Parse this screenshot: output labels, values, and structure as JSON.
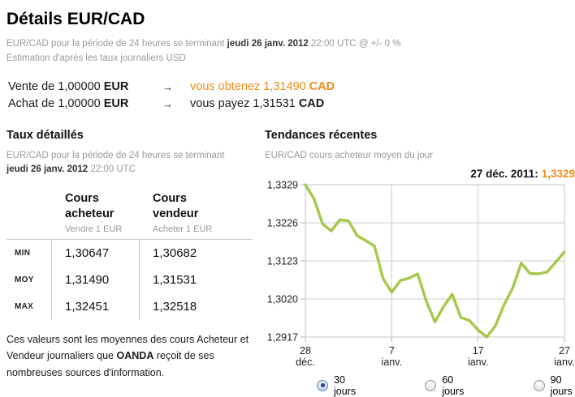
{
  "page": {
    "title": "Détails EUR/CAD",
    "subtitle_prefix": "EUR/CAD pour la période de 24 heures se terminant ",
    "subtitle_date": "jeudi 26 janv. 2012",
    "subtitle_suffix": " 22:00 UTC @ +/- 0 %",
    "subtitle_line2": "Estimation d'après les taux journaliers USD"
  },
  "rates": {
    "sell_label": "Vente de 1,00000 ",
    "sell_currency": "EUR",
    "arrow": "→",
    "sell_result": "vous obtenez 1,31490 ",
    "sell_result_currency": "CAD",
    "buy_label": "Achat de 1,00000 ",
    "buy_currency": "EUR",
    "buy_result": "vous payez 1,31531 ",
    "buy_result_currency": "CAD"
  },
  "detailed_rates": {
    "heading": "Taux détaillés",
    "subtitle_line1": "EUR/CAD pour la période de 24 heures se terminant",
    "subtitle_date": "jeudi 26 janv. 2012",
    "subtitle_time": " 22:00 UTC",
    "table": {
      "columns": [
        {
          "title_line1": "Cours",
          "title_line2": "acheteur",
          "subtitle": "Vendre 1 EUR"
        },
        {
          "title_line1": "Cours",
          "title_line2": "vendeur",
          "subtitle": "Acheter 1 EUR"
        }
      ],
      "rows": [
        {
          "label": "MIN",
          "bid": "1,30647",
          "ask": "1,30682"
        },
        {
          "label": "MOY",
          "bid": "1,31490",
          "ask": "1,31531"
        },
        {
          "label": "MAX",
          "bid": "1,32451",
          "ask": "1,32518"
        }
      ]
    },
    "footnote_part1": "Ces valeurs sont les moyennes des cours Acheteur et Vendeur journaliers que ",
    "footnote_brand": "OANDA",
    "footnote_part2": " reçoit de ses nombreuses sources d'information."
  },
  "trends": {
    "heading": "Tendances récentes",
    "subtitle": "EUR/CAD cours acheteur moyen du jour",
    "annotation_date": "27 déc. 2011:",
    "annotation_value": "1,3329",
    "period_options": [
      {
        "label": "30 jours",
        "selected": true
      },
      {
        "label": "60 jours",
        "selected": false
      },
      {
        "label": "90 jours",
        "selected": false
      }
    ]
  },
  "chart_data": {
    "type": "line",
    "title": "27 déc. 2011: 1,3329",
    "series_name": "EUR/CAD cours acheteur moyen du jour",
    "ylim": [
      1.2917,
      1.3329
    ],
    "y_ticks": [
      "1,3329",
      "1,3226",
      "1,3123",
      "1,3020",
      "1,2917"
    ],
    "y_tick_values": [
      1.3329,
      1.3226,
      1.3123,
      1.302,
      1.2917
    ],
    "x_ticks": [
      {
        "line1": "28",
        "line2": "déc."
      },
      {
        "line1": "7",
        "line2": "janv."
      },
      {
        "line1": "17",
        "line2": "janv."
      },
      {
        "line1": "27",
        "line2": "janv."
      }
    ],
    "x_tick_positions": [
      0,
      10,
      20,
      30
    ],
    "values": [
      1.3329,
      1.3291,
      1.3223,
      1.3204,
      1.3234,
      1.3231,
      1.3191,
      1.3178,
      1.3163,
      1.3075,
      1.3038,
      1.307,
      1.3076,
      1.3088,
      1.3014,
      1.2958,
      1.2999,
      1.3033,
      1.297,
      1.2962,
      1.2936,
      1.2917,
      1.2947,
      1.3004,
      1.3049,
      1.3117,
      1.3089,
      1.3088,
      1.3093,
      1.312,
      1.3147
    ],
    "grid_on": true,
    "legend": "none",
    "line_color": "#a6c84a",
    "grid_color": "#cccccc",
    "tick_color": "#b3b3b3",
    "border_color": "#c4c4c4"
  },
  "colors": {
    "accent_orange": "#f18b17",
    "chart_green": "#a6c84a",
    "muted_gray": "#9a9a9a"
  }
}
